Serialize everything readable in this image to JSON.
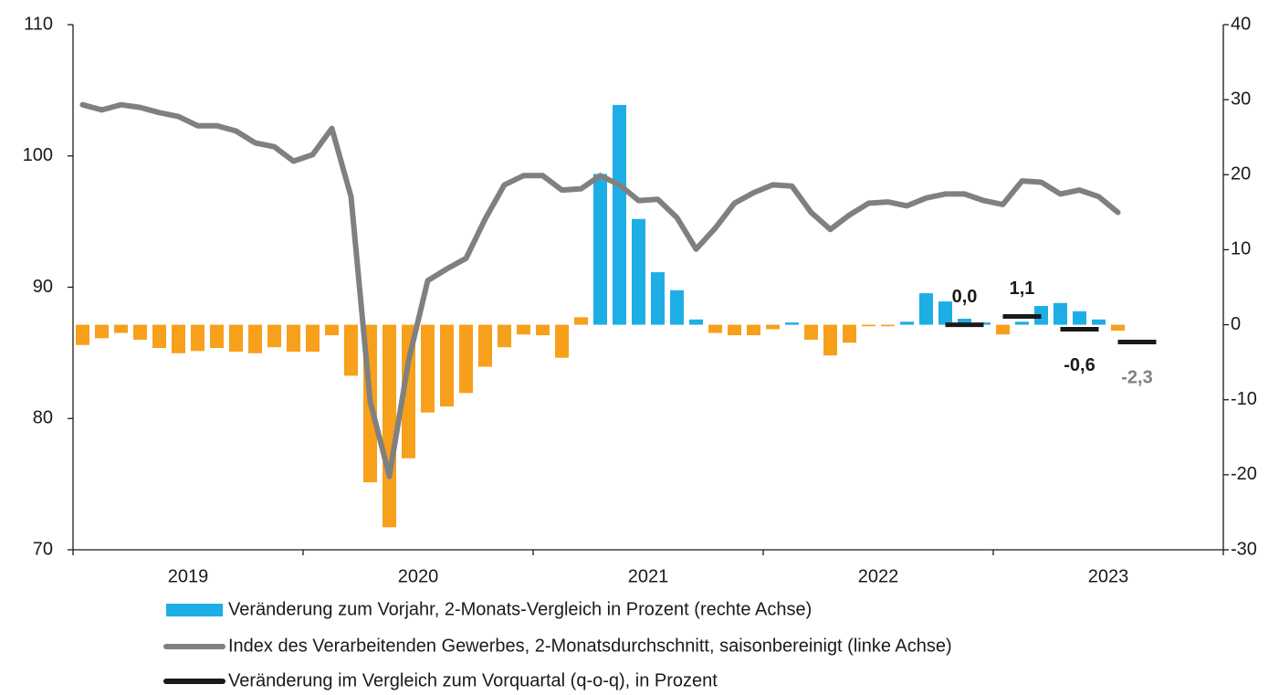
{
  "chart_data": {
    "type": "bar",
    "categories": [
      null,
      null,
      null,
      null,
      null,
      null,
      null,
      null,
      null,
      null,
      null,
      null,
      null,
      null,
      null,
      null,
      null,
      null,
      null,
      null,
      null,
      null,
      null,
      null,
      null,
      null,
      null,
      null,
      null,
      null,
      null,
      null,
      null,
      null,
      null,
      null,
      null,
      null,
      null,
      null,
      null,
      null,
      null,
      null,
      null,
      null,
      null,
      null,
      null,
      null,
      null,
      null,
      null,
      null,
      null,
      null,
      null,
      null,
      null,
      null
    ],
    "x_groups": [
      "2019",
      "2020",
      "2021",
      "2022",
      "2023"
    ],
    "ylim": [
      70,
      110
    ],
    "yticks": [
      70,
      80,
      90,
      100,
      110
    ],
    "y2lim": [
      -30,
      40
    ],
    "y2ticks": [
      -30,
      -20,
      -10,
      0,
      10,
      20,
      30,
      40
    ],
    "grid": false,
    "series": [
      {
        "name": "Veränderung zum Vorjahr, 2-Monats-Vergleich in Prozent (rechte Achse)",
        "type": "bar",
        "axis": "y2",
        "color": "#1eaee6",
        "values": [
          -2.7,
          -1.8,
          -1.1,
          -2.0,
          -3.1,
          -3.8,
          -3.5,
          -3.1,
          -3.6,
          -3.8,
          -3.0,
          -3.6,
          -3.6,
          -1.4,
          -6.8,
          -21.0,
          -27.0,
          -17.8,
          -11.7,
          -10.9,
          -9.1,
          -5.6,
          -3.0,
          -1.3,
          -1.4,
          -4.4,
          1.0,
          20.1,
          29.3,
          14.1,
          7.0,
          4.6,
          0.7,
          -1.1,
          -1.4,
          -1.4,
          -0.6,
          0.3,
          -2.0,
          -4.1,
          -2.4,
          -0.2,
          -0.2,
          0.4,
          4.2,
          3.1,
          0.8,
          0.3,
          -1.3,
          0.4,
          2.5,
          2.9,
          1.8,
          0.7,
          -0.8,
          null,
          null,
          null,
          null,
          null
        ],
        "colors": [
          "#f7a01b",
          "#f7a01b",
          "#f7a01b",
          "#f7a01b",
          "#f7a01b",
          "#f7a01b",
          "#f7a01b",
          "#f7a01b",
          "#f7a01b",
          "#f7a01b",
          "#f7a01b",
          "#f7a01b",
          "#f7a01b",
          "#f7a01b",
          "#f7a01b",
          "#f7a01b",
          "#f7a01b",
          "#f7a01b",
          "#f7a01b",
          "#f7a01b",
          "#f7a01b",
          "#f7a01b",
          "#f7a01b",
          "#f7a01b",
          "#f7a01b",
          "#f7a01b",
          "#f7a01b",
          "#1eaee6",
          "#1eaee6",
          "#1eaee6",
          "#1eaee6",
          "#1eaee6",
          "#1eaee6",
          "#f7a01b",
          "#f7a01b",
          "#f7a01b",
          "#f7a01b",
          "#1eaee6",
          "#f7a01b",
          "#f7a01b",
          "#f7a01b",
          "#f7a01b",
          "#f7a01b",
          "#1eaee6",
          "#1eaee6",
          "#1eaee6",
          "#1eaee6",
          "#1eaee6",
          "#f7a01b",
          "#1eaee6",
          "#1eaee6",
          "#1eaee6",
          "#1eaee6",
          "#1eaee6",
          "#f7a01b",
          null,
          null,
          null,
          null,
          null
        ]
      },
      {
        "name": "Index des Verarbeitenden Gewerbes, 2-Monatsdurchschnitt, saisonbereinigt (linke Achse)",
        "type": "line",
        "axis": "y",
        "color": "#808080",
        "values": [
          103.9,
          103.5,
          103.9,
          103.7,
          103.3,
          103.0,
          102.3,
          102.3,
          101.9,
          101.0,
          100.7,
          99.6,
          100.1,
          102.1,
          96.9,
          81.3,
          75.6,
          84.4,
          90.5,
          91.4,
          92.2,
          95.2,
          97.8,
          98.5,
          98.5,
          97.4,
          97.5,
          98.5,
          97.8,
          96.6,
          96.7,
          95.3,
          92.9,
          94.5,
          96.4,
          97.2,
          97.8,
          97.7,
          95.7,
          94.4,
          95.5,
          96.4,
          96.5,
          96.2,
          96.8,
          97.1,
          97.1,
          96.6,
          96.3,
          98.1,
          98.0,
          97.1,
          97.4,
          96.9,
          95.7,
          null,
          null,
          null,
          null,
          null
        ]
      },
      {
        "name": "Veränderung im Vergleich zum Vorquartal (q-o-q), in Prozent",
        "type": "segment",
        "axis": "y2",
        "color": "#1a1a1a",
        "values": [
          null,
          null,
          null,
          null,
          null,
          null,
          null,
          null,
          null,
          null,
          null,
          null,
          null,
          null,
          null,
          null,
          null,
          null,
          null,
          null,
          null,
          null,
          null,
          null,
          null,
          null,
          null,
          null,
          null,
          null,
          null,
          null,
          null,
          null,
          null,
          null,
          null,
          null,
          null,
          null,
          null,
          null,
          null,
          null,
          null,
          null,
          0.0,
          null,
          null,
          1.1,
          null,
          null,
          -0.6,
          null,
          null,
          -2.3,
          null,
          null,
          null,
          null
        ],
        "value_labels": [
          null,
          null,
          null,
          null,
          null,
          null,
          null,
          null,
          null,
          null,
          null,
          null,
          null,
          null,
          null,
          null,
          null,
          null,
          null,
          null,
          null,
          null,
          null,
          null,
          null,
          null,
          null,
          null,
          null,
          null,
          null,
          null,
          null,
          null,
          null,
          null,
          null,
          null,
          null,
          null,
          null,
          null,
          null,
          null,
          null,
          null,
          "0,0",
          null,
          null,
          "1,1",
          null,
          null,
          "-0,6",
          null,
          null,
          "-2,3",
          null,
          null,
          null,
          null
        ],
        "value_label_colors": [
          null,
          null,
          null,
          null,
          null,
          null,
          null,
          null,
          null,
          null,
          null,
          null,
          null,
          null,
          null,
          null,
          null,
          null,
          null,
          null,
          null,
          null,
          null,
          null,
          null,
          null,
          null,
          null,
          null,
          null,
          null,
          null,
          null,
          null,
          null,
          null,
          null,
          null,
          null,
          null,
          null,
          null,
          null,
          null,
          null,
          null,
          "#1a1a1a",
          null,
          null,
          "#1a1a1a",
          null,
          null,
          "#1a1a1a",
          null,
          null,
          "#808080",
          null,
          null,
          null,
          null
        ]
      }
    ]
  }
}
